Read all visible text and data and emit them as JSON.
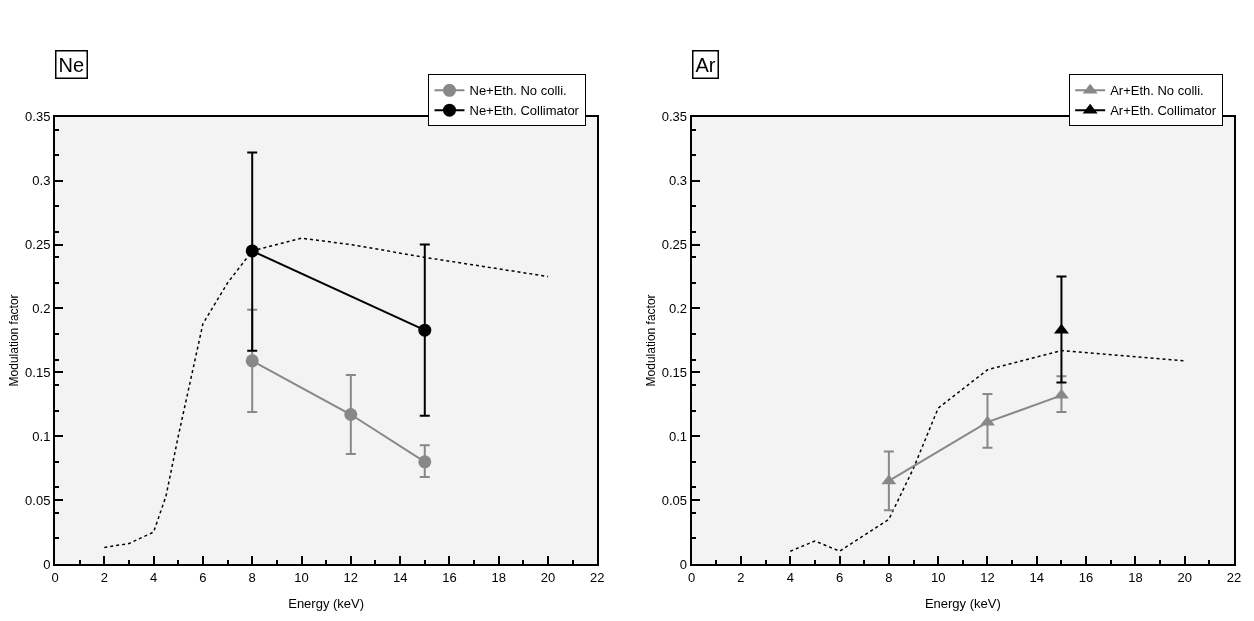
{
  "chart_data": [
    {
      "type": "line",
      "title": "Ne",
      "xlabel": "Energy (keV)",
      "ylabel": "Modulation factor",
      "xlim": [
        0,
        22
      ],
      "ylim": [
        0,
        0.35
      ],
      "xticks": [
        0,
        2,
        4,
        6,
        8,
        10,
        12,
        14,
        16,
        18,
        20,
        22
      ],
      "yticks": [
        0,
        0.05,
        0.1,
        0.15,
        0.2,
        0.25,
        0.3,
        0.35
      ],
      "legend": "top right",
      "grid": false,
      "series": [
        {
          "color": "#000000",
          "line_style": "dotted",
          "marker": "none",
          "x": [
            2,
            3,
            4,
            4.5,
            5,
            6,
            7,
            8,
            10,
            12,
            15,
            20
          ],
          "values": [
            0.013,
            0.016,
            0.025,
            0.053,
            0.1,
            0.188,
            0.22,
            0.245,
            0.255,
            0.25,
            0.24,
            0.225
          ]
        },
        {
          "name": "Ne+Eth. No colli.",
          "color": "#888888",
          "line_style": "solid",
          "marker": "circle",
          "x": [
            8,
            12,
            15
          ],
          "values": [
            0.159,
            0.117,
            0.08
          ],
          "errors": [
            [
              0.119,
              0.199
            ],
            [
              0.086,
              0.148
            ],
            [
              0.068,
              0.093
            ]
          ]
        },
        {
          "name": "Ne+Eth. Collimator",
          "color": "#000000",
          "line_style": "solid",
          "marker": "circle",
          "x": [
            8,
            15
          ],
          "values": [
            0.245,
            0.183
          ],
          "errors": [
            [
              0.167,
              0.322
            ],
            [
              0.116,
              0.25
            ]
          ]
        }
      ]
    },
    {
      "type": "line",
      "title": "Ar",
      "xlabel": "Energy (keV)",
      "ylabel": "Modulation factor",
      "xlim": [
        0,
        22
      ],
      "ylim": [
        0,
        0.35
      ],
      "xticks": [
        0,
        2,
        4,
        6,
        8,
        10,
        12,
        14,
        16,
        18,
        20,
        22
      ],
      "yticks": [
        0,
        0.05,
        0.1,
        0.15,
        0.2,
        0.25,
        0.3,
        0.35
      ],
      "legend": "top right",
      "grid": false,
      "series": [
        {
          "color": "#000000",
          "line_style": "dotted",
          "marker": "none",
          "x": [
            4,
            5,
            6,
            8,
            9,
            10,
            12,
            15,
            20
          ],
          "values": [
            0.01,
            0.018,
            0.01,
            0.035,
            0.075,
            0.122,
            0.152,
            0.167,
            0.159
          ]
        },
        {
          "name": "Ar+Eth. No colli.",
          "color": "#888888",
          "line_style": "solid",
          "marker": "triangle",
          "x": [
            8,
            12,
            15
          ],
          "values": [
            0.065,
            0.111,
            0.132
          ],
          "errors": [
            [
              0.042,
              0.088
            ],
            [
              0.091,
              0.133
            ],
            [
              0.119,
              0.147
            ]
          ]
        },
        {
          "name": "Ar+Eth. Collimator",
          "color": "#000000",
          "line_style": "solid",
          "marker": "triangle",
          "x": [
            15
          ],
          "values": [
            0.183
          ],
          "errors": [
            [
              0.142,
              0.225
            ]
          ]
        }
      ]
    }
  ]
}
